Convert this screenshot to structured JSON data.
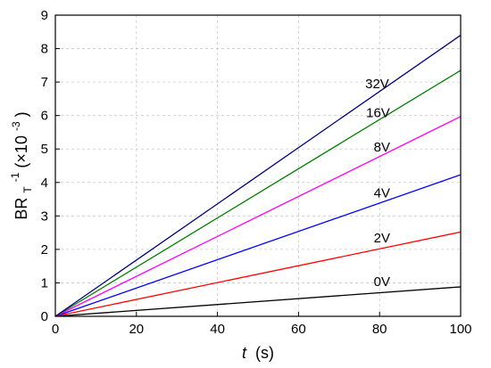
{
  "chart_data": {
    "type": "line",
    "xlabel_italic": "t",
    "xlabel_unit": "(s)",
    "ylabel_base": "BR",
    "ylabel_subscript": "T",
    "ylabel_superscript": "-1",
    "ylabel_factor_open": "(×10",
    "ylabel_factor_exp": "-3",
    "ylabel_factor_close": ")",
    "xlim": [
      0,
      100
    ],
    "ylim": [
      0,
      9
    ],
    "xticks": [
      "0",
      "20",
      "40",
      "60",
      "80",
      "100"
    ],
    "yticks": [
      "0",
      "1",
      "2",
      "3",
      "4",
      "5",
      "6",
      "7",
      "8",
      "9"
    ],
    "grid": true,
    "series": [
      {
        "name": "0V",
        "color": "#000000",
        "x": [
          0,
          100
        ],
        "y": [
          0,
          0.88
        ]
      },
      {
        "name": "2V",
        "color": "#ff0000",
        "x": [
          0,
          100
        ],
        "y": [
          0,
          2.52
        ]
      },
      {
        "name": "4V",
        "color": "#0000ff",
        "x": [
          0,
          100
        ],
        "y": [
          0,
          4.23
        ]
      },
      {
        "name": "8V",
        "color": "#ff00ff",
        "x": [
          0,
          100
        ],
        "y": [
          0,
          5.97
        ]
      },
      {
        "name": "16V",
        "color": "#008000",
        "x": [
          0,
          100
        ],
        "y": [
          0,
          7.35
        ]
      },
      {
        "name": "32V",
        "color": "#000080",
        "x": [
          0,
          100
        ],
        "y": [
          0,
          8.4
        ]
      }
    ]
  }
}
